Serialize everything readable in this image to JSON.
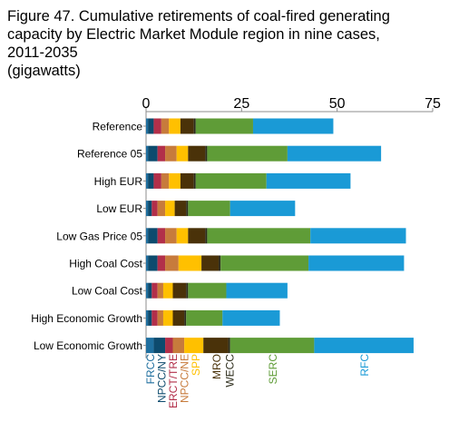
{
  "title_lines": [
    "Figure 47. Cumulative retirements of coal-fired generating",
    "capacity by Electric Market Module region in nine cases,",
    "2011-2035",
    "(gigawatts)"
  ],
  "chart_data": {
    "type": "bar",
    "orientation": "horizontal",
    "stacked": true,
    "title": "Figure 47. Cumulative retirements of coal-fired generating capacity by Electric Market Module region in nine cases, 2011-2035",
    "subtitle": "(gigawatts)",
    "xlim": [
      0,
      75
    ],
    "xticks": [
      0,
      25,
      50,
      75
    ],
    "grid": false,
    "legend": "bottom, rotated labels",
    "categories": [
      "Reference",
      "Reference 05",
      "High EUR",
      "Low EUR",
      "Low Gas Price 05",
      "High Coal Cost",
      "Low Coal Cost",
      "High Economic Growth",
      "Low Economic Growth"
    ],
    "series": [
      {
        "name": "FRCC",
        "color": "#1f6f9f",
        "values": [
          0.5,
          0.5,
          0.5,
          0.5,
          0.5,
          0.5,
          0.5,
          0.5,
          2.0
        ]
      },
      {
        "name": "NPCC/NY",
        "color": "#0d4b6e",
        "values": [
          1.5,
          2.5,
          1.5,
          1.0,
          2.5,
          2.5,
          1.0,
          1.0,
          3.0
        ]
      },
      {
        "name": "ERCT/TRE",
        "color": "#b22f4a",
        "values": [
          2.0,
          2.0,
          2.0,
          1.5,
          2.0,
          2.0,
          1.5,
          1.5,
          2.0
        ]
      },
      {
        "name": "NPCC/NE",
        "color": "#c77b3c",
        "values": [
          2.0,
          3.0,
          2.0,
          2.0,
          3.0,
          3.5,
          1.5,
          1.5,
          3.0
        ]
      },
      {
        "name": "SPP",
        "color": "#ffc000",
        "values": [
          3.0,
          3.0,
          3.0,
          2.5,
          3.0,
          6.0,
          2.5,
          2.5,
          5.0
        ]
      },
      {
        "name": "MRO",
        "color": "#4a3209",
        "values": [
          3.5,
          4.5,
          3.5,
          3.0,
          4.5,
          4.5,
          3.5,
          3.0,
          6.5
        ]
      },
      {
        "name": "WECC",
        "color": "#2b2b1a",
        "values": [
          0.5,
          0.5,
          0.5,
          0.5,
          0.5,
          0.5,
          0.5,
          0.5,
          0.5
        ]
      },
      {
        "name": "SERC",
        "color": "#5f9c37",
        "values": [
          15.0,
          21.0,
          18.5,
          11.0,
          27.0,
          23.0,
          10.0,
          9.5,
          22.0
        ]
      },
      {
        "name": "RFC",
        "color": "#1a9ad6",
        "values": [
          21.0,
          24.5,
          22.0,
          17.0,
          25.0,
          25.0,
          16.0,
          15.0,
          26.0
        ]
      }
    ]
  }
}
